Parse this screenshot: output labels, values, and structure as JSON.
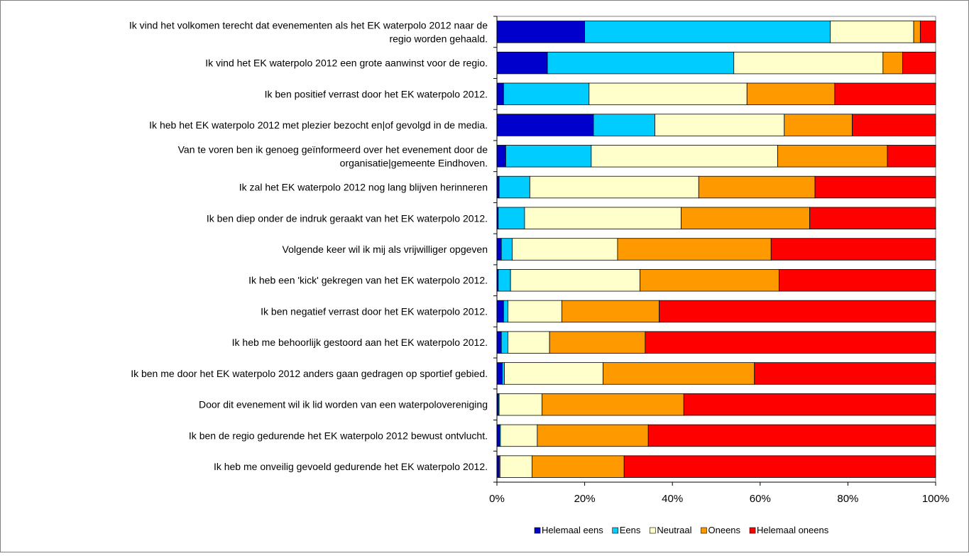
{
  "chart_data": {
    "type": "bar",
    "orientation": "horizontal",
    "stacked": "percent",
    "categories": [
      "Ik vind het volkomen terecht dat evenementen als het EK waterpolo 2012 naar de regio worden gehaald.",
      "Ik vind het EK waterpolo 2012 een grote aanwinst voor de regio.",
      "Ik ben positief verrast door het EK waterpolo 2012.",
      "Ik heb het EK waterpolo 2012 met plezier bezocht en|of gevolgd in de media.",
      "Van te voren ben ik genoeg geïnformeerd over het evenement door de organisatie|gemeente Eindhoven.",
      "Ik zal het EK waterpolo 2012 nog lang blijven herinneren",
      "Ik ben diep onder de indruk geraakt van het EK waterpolo 2012.",
      "Volgende keer wil ik mij als vrijwilliger opgeven",
      "Ik heb een 'kick' gekregen van het EK waterpolo 2012.",
      "Ik ben negatief verrast door het EK waterpolo 2012.",
      "Ik heb me behoorlijk gestoord aan het EK waterpolo 2012.",
      "Ik ben me door het EK waterpolo 2012 anders gaan gedragen op sportief gebied.",
      "Door dit evenement wil ik lid worden van een waterpolovereniging",
      "Ik ben de regio gedurende het EK waterpolo 2012 bewust ontvlucht.",
      "Ik heb me onveilig gevoeld gedurende het EK waterpolo 2012."
    ],
    "category_lines": [
      [
        "Ik vind het volkomen terecht dat evenementen als het EK waterpolo 2012 naar de",
        "regio worden gehaald."
      ],
      [
        "Ik vind het EK waterpolo 2012 een grote aanwinst voor de regio."
      ],
      [
        "Ik ben positief verrast door het EK waterpolo 2012."
      ],
      [
        "Ik heb het EK waterpolo 2012 met plezier bezocht en|of gevolgd in de media."
      ],
      [
        "Van te voren ben ik genoeg geïnformeerd over het evenement door de",
        "organisatie|gemeente Eindhoven."
      ],
      [
        "Ik zal het EK waterpolo 2012 nog lang blijven herinneren"
      ],
      [
        "Ik ben diep onder de indruk geraakt van het EK waterpolo 2012."
      ],
      [
        "Volgende keer wil ik mij als vrijwilliger opgeven"
      ],
      [
        "Ik heb een 'kick' gekregen van het EK waterpolo 2012."
      ],
      [
        "Ik ben negatief verrast door het EK waterpolo 2012."
      ],
      [
        "Ik heb me behoorlijk gestoord aan het EK waterpolo 2012."
      ],
      [
        "Ik ben me door het EK waterpolo 2012 anders gaan gedragen op sportief gebied."
      ],
      [
        "Door dit evenement wil ik lid worden van een waterpolovereniging"
      ],
      [
        "Ik ben de regio gedurende het EK waterpolo 2012 bewust ontvlucht."
      ],
      [
        "Ik heb me onveilig gevoeld gedurende het EK waterpolo 2012."
      ]
    ],
    "series": [
      {
        "name": "Helemaal eens",
        "color": "#0000CC",
        "values": [
          20,
          11.5,
          1.5,
          22,
          2,
          0.5,
          0.3,
          1,
          0.3,
          1.5,
          1,
          1.2,
          0.3,
          0.6,
          0.5
        ]
      },
      {
        "name": "Eens",
        "color": "#00CCFF",
        "values": [
          56,
          42.5,
          19.5,
          14,
          19.5,
          7,
          6,
          2.5,
          2.8,
          1,
          1.5,
          0.5,
          0.2,
          0.2,
          0.2
        ]
      },
      {
        "name": "Neutraal",
        "color": "#FFFFCC",
        "values": [
          19,
          34,
          36,
          29.5,
          42.5,
          38.5,
          35.7,
          24,
          29.5,
          12.3,
          9.5,
          22.5,
          9.8,
          8.4,
          7.3
        ]
      },
      {
        "name": "Oneens",
        "color": "#FF9900",
        "values": [
          1.5,
          4.5,
          20,
          15.5,
          25,
          26.5,
          29.3,
          35,
          31.7,
          22.2,
          21.8,
          34.5,
          32.3,
          25.3,
          21
        ]
      },
      {
        "name": "Helemaal oneens",
        "color": "#FF0000",
        "values": [
          3.5,
          7.5,
          23,
          19,
          11,
          27.5,
          28.7,
          37.5,
          35.7,
          63,
          66.2,
          41.3,
          57.4,
          65.5,
          71
        ]
      }
    ],
    "xlim": [
      0,
      100
    ],
    "x_ticks": [
      "0%",
      "20%",
      "40%",
      "60%",
      "80%",
      "100%"
    ],
    "grid": false,
    "legend_position": "bottom"
  }
}
